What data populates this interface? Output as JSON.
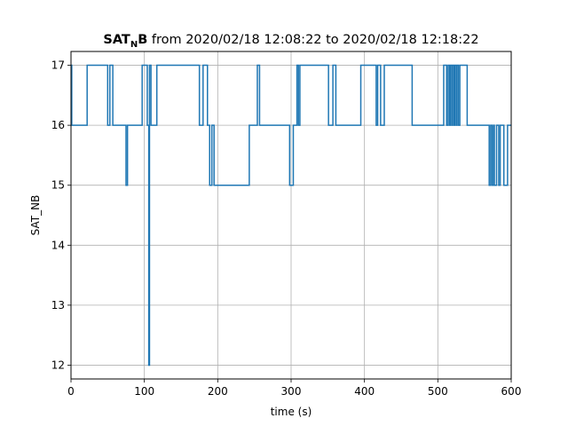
{
  "chart_data": {
    "type": "line",
    "title": {
      "main": "SAT",
      "subscript": "N",
      "main_end": "B",
      "suffix": " from 2020/02/18 12:08:22 to 2020/02/18 12:18:22"
    },
    "xlabel": "time (s)",
    "ylabel": "SAT_NB",
    "xlim": [
      0,
      600
    ],
    "ylim": [
      11.77,
      17.23
    ],
    "x_ticks": [
      0,
      100,
      200,
      300,
      400,
      500,
      600
    ],
    "y_ticks": [
      12,
      13,
      14,
      15,
      16,
      17
    ],
    "grid": true,
    "line_color": "#1f77b4",
    "drawstyle": "steps-post",
    "series": [
      {
        "x": [
          0,
          1,
          2,
          22,
          50,
          53,
          57,
          60,
          75,
          77,
          79,
          97,
          104,
          106,
          107,
          109,
          112,
          117,
          175,
          180,
          186,
          189,
          192,
          195,
          197,
          243,
          250,
          254,
          257,
          298,
          303,
          308,
          310,
          312,
          315,
          351,
          357,
          361,
          395,
          416,
          418,
          422,
          427,
          465,
          508,
          512,
          514,
          516,
          517,
          519,
          520,
          522,
          523,
          525,
          526,
          528,
          530,
          540,
          570,
          572,
          574,
          576,
          577,
          580,
          583,
          585,
          590,
          595,
          600
        ],
        "y": [
          17,
          16,
          16,
          17,
          16,
          17,
          16,
          16,
          15,
          16,
          16,
          17,
          16,
          12,
          17,
          16,
          16,
          17,
          16,
          17,
          16,
          15,
          16,
          15,
          15,
          16,
          16,
          17,
          16,
          15,
          16,
          17,
          16,
          17,
          17,
          16,
          17,
          16,
          17,
          16,
          17,
          16,
          17,
          16,
          17,
          16,
          17,
          16,
          17,
          16,
          17,
          16,
          17,
          16,
          17,
          16,
          17,
          16,
          15,
          16,
          15,
          16,
          15,
          16,
          15,
          16,
          15,
          16,
          16
        ]
      }
    ]
  }
}
